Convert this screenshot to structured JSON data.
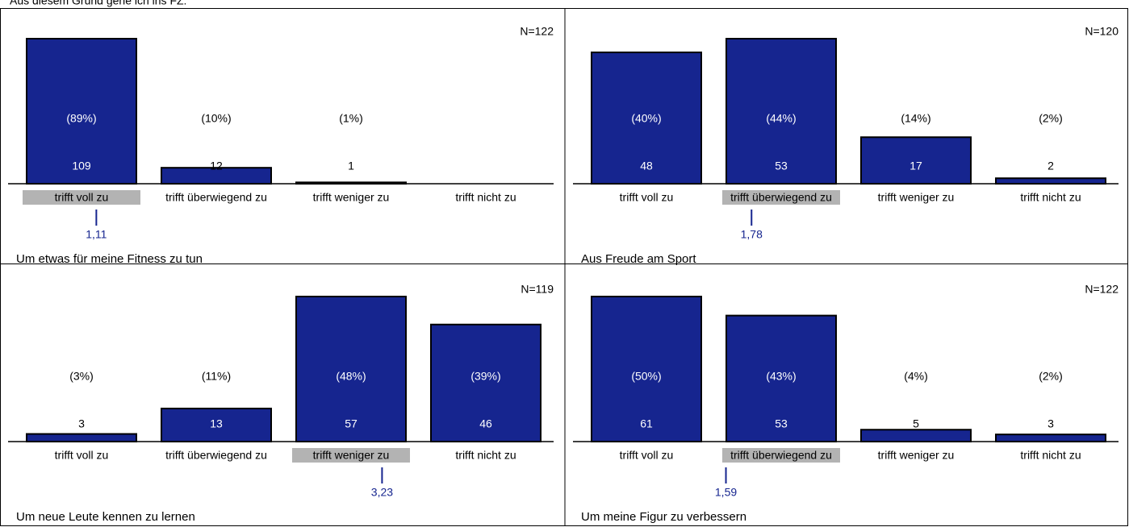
{
  "title": "Aus diesem Grund gehe ich ins FZ:",
  "chart_data": [
    {
      "type": "bar",
      "title": "Um etwas für meine Fitness zu tun",
      "n_label": "N=122",
      "color": "#16258f",
      "categories": [
        "trifft voll zu",
        "trifft überwiegend zu",
        "trifft weniger zu",
        "trifft nicht zu"
      ],
      "values": [
        109,
        12,
        1,
        0
      ],
      "percent_labels": [
        "(89%)",
        "(10%)",
        "(1%)",
        null
      ],
      "mean": {
        "value": 1.11,
        "label": "1,11"
      }
    },
    {
      "type": "bar",
      "title": "Aus Freude am Sport",
      "n_label": "N=120",
      "color": "#16258f",
      "categories": [
        "trifft voll zu",
        "trifft überwiegend zu",
        "trifft weniger zu",
        "trifft nicht zu"
      ],
      "values": [
        48,
        53,
        17,
        2
      ],
      "percent_labels": [
        "(40%)",
        "(44%)",
        "(14%)",
        "(2%)"
      ],
      "mean": {
        "value": 1.78,
        "label": "1,78"
      }
    },
    {
      "type": "bar",
      "title": "Um neue Leute kennen zu lernen",
      "n_label": "N=119",
      "color": "#16258f",
      "categories": [
        "trifft voll zu",
        "trifft überwiegend zu",
        "trifft weniger zu",
        "trifft nicht zu"
      ],
      "values": [
        3,
        13,
        57,
        46
      ],
      "percent_labels": [
        "(3%)",
        "(11%)",
        "(48%)",
        "(39%)"
      ],
      "mean": {
        "value": 3.23,
        "label": "3,23"
      }
    },
    {
      "type": "bar",
      "title": "Um meine Figur zu verbessern",
      "n_label": "N=122",
      "color": "#16258f",
      "categories": [
        "trifft voll zu",
        "trifft überwiegend zu",
        "trifft weniger zu",
        "trifft nicht zu"
      ],
      "values": [
        61,
        53,
        5,
        3
      ],
      "percent_labels": [
        "(50%)",
        "(43%)",
        "(4%)",
        "(2%)"
      ],
      "mean": {
        "value": 1.59,
        "label": "1,59"
      }
    }
  ]
}
